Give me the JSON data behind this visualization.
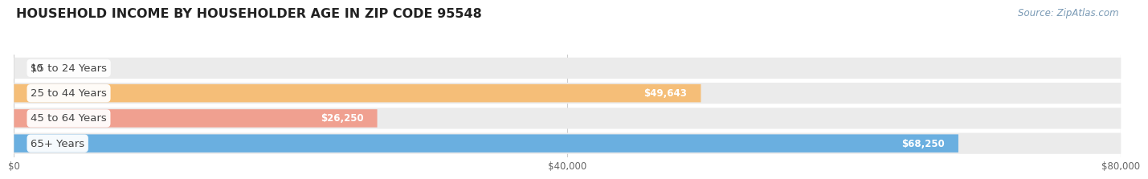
{
  "title": "HOUSEHOLD INCOME BY HOUSEHOLDER AGE IN ZIP CODE 95548",
  "source": "Source: ZipAtlas.com",
  "categories": [
    "15 to 24 Years",
    "25 to 44 Years",
    "45 to 64 Years",
    "65+ Years"
  ],
  "values": [
    0,
    49643,
    26250,
    68250
  ],
  "bar_colors": [
    "#f4a0b4",
    "#f5be78",
    "#f0a090",
    "#6aafe0"
  ],
  "bg_row_color": "#ebebeb",
  "xlim": [
    0,
    80000
  ],
  "xticks": [
    0,
    40000,
    80000
  ],
  "xtick_labels": [
    "$0",
    "$40,000",
    "$80,000"
  ],
  "title_fontsize": 11.5,
  "source_fontsize": 8.5,
  "bar_label_fontsize": 8.5,
  "category_fontsize": 9.5,
  "background_color": "#ffffff",
  "value_labels": [
    "$0",
    "$49,643",
    "$26,250",
    "$68,250"
  ],
  "grid_color": "#cccccc",
  "label_color": "#444444",
  "source_color": "#7a9ab5",
  "tick_label_color": "#666666"
}
